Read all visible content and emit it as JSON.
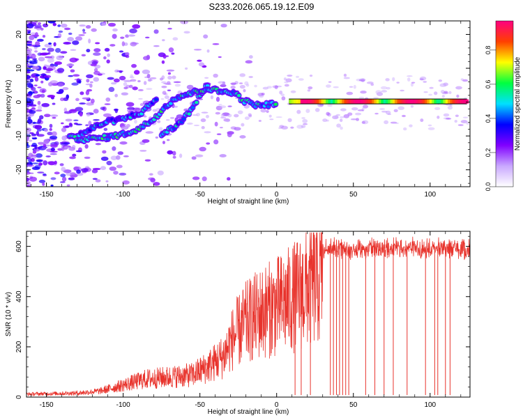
{
  "title": "S233.2026.065.19.12.E09",
  "chart_data": [
    {
      "type": "heatmap",
      "panel": "spectrogram",
      "xlabel": "Height of straight line (km)",
      "ylabel": "Frequency (Hz)",
      "xlim": [
        -163,
        126
      ],
      "ylim": [
        -25,
        24
      ],
      "xticks": [
        -150,
        -100,
        -50,
        0,
        50,
        100
      ],
      "yticks": [
        -20,
        -10,
        0,
        10,
        20
      ],
      "colorbar": {
        "label": "Normalized spectral amplitude",
        "range": [
          0,
          1
        ],
        "ticks": [
          0.0,
          0.2,
          0.4,
          0.6,
          0.8
        ],
        "tick_labels": [
          "0.0",
          "0.2",
          "0.4",
          "0.6",
          "0.8"
        ],
        "colors": [
          "#ffffff",
          "#c9a8ff",
          "#8000ff",
          "#0000ff",
          "#00e0ff",
          "#00ff40",
          "#ffff00",
          "#ff4000",
          "#ff0080"
        ]
      },
      "ridge": [
        {
          "x": -135,
          "y": -10.5
        },
        {
          "x": -125,
          "y": -11
        },
        {
          "x": -112,
          "y": -10.5
        },
        {
          "x": -100,
          "y": -9.5
        },
        {
          "x": -90,
          "y": -8
        },
        {
          "x": -80,
          "y": -5
        },
        {
          "x": -72,
          "y": -1
        },
        {
          "x": -65,
          "y": 1.5
        },
        {
          "x": -45,
          "y": 4
        },
        {
          "x": -35,
          "y": 3
        },
        {
          "x": -28,
          "y": 3
        },
        {
          "x": -22,
          "y": 0.5
        },
        {
          "x": -12,
          "y": -1
        },
        {
          "x": 0,
          "y": -0.5
        },
        {
          "x": 10,
          "y": 0.2
        },
        {
          "x": 30,
          "y": 0.2
        },
        {
          "x": 60,
          "y": 0.2
        },
        {
          "x": 90,
          "y": 0.2
        },
        {
          "x": 124,
          "y": 0.2
        }
      ],
      "second_ridge": [
        {
          "x": -75,
          "y": -9.5
        },
        {
          "x": -65,
          "y": -7
        },
        {
          "x": -55,
          "y": -2
        },
        {
          "x": -48,
          "y": 3.5
        },
        {
          "x": -44,
          "y": 6
        }
      ],
      "upper_branch": [
        {
          "x": -130,
          "y": -10
        },
        {
          "x": -112,
          "y": -6
        },
        {
          "x": -100,
          "y": -5
        },
        {
          "x": -88,
          "y": -3
        },
        {
          "x": -78,
          "y": 1
        }
      ]
    },
    {
      "type": "line",
      "panel": "snr",
      "xlabel": "Height of straight line (km)",
      "ylabel": "SNR (10 * v/v)",
      "xlim": [
        -163,
        126
      ],
      "ylim": [
        0,
        660
      ],
      "xticks": [
        -150,
        -100,
        -50,
        0,
        50,
        100
      ],
      "yticks": [
        0,
        200,
        400,
        600
      ],
      "color": "#e8332c",
      "envelope": [
        {
          "x": -163,
          "y": 15
        },
        {
          "x": -130,
          "y": 20
        },
        {
          "x": -115,
          "y": 30
        },
        {
          "x": -100,
          "y": 60
        },
        {
          "x": -85,
          "y": 90
        },
        {
          "x": -70,
          "y": 100
        },
        {
          "x": -55,
          "y": 110
        },
        {
          "x": -45,
          "y": 150
        },
        {
          "x": -35,
          "y": 200
        },
        {
          "x": -28,
          "y": 300
        },
        {
          "x": -20,
          "y": 370
        },
        {
          "x": -10,
          "y": 420
        },
        {
          "x": 0,
          "y": 450
        },
        {
          "x": 10,
          "y": 490
        },
        {
          "x": 20,
          "y": 540
        },
        {
          "x": 30,
          "y": 590
        },
        {
          "x": 40,
          "y": 600
        },
        {
          "x": 126,
          "y": 600
        }
      ],
      "dropouts_x": [
        12,
        16,
        22,
        35,
        37,
        39,
        41,
        43,
        45,
        47,
        58,
        64,
        70,
        76,
        85,
        97,
        103,
        105,
        110,
        113
      ]
    }
  ]
}
